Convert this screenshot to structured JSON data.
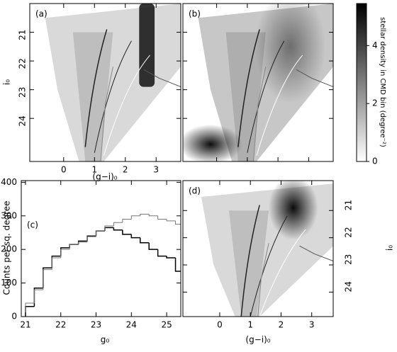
{
  "chart_data": [
    {
      "type": "density",
      "panel_label": "(a)",
      "xlabel": "(g−i)₀",
      "ylabel": "i₀",
      "xlim": [
        -1.1,
        3.8
      ],
      "ylim": [
        25.5,
        20.0
      ],
      "xticks": [
        0,
        1,
        2,
        3
      ],
      "yticks": [
        21,
        22,
        23,
        24
      ]
    },
    {
      "type": "density",
      "panel_label": "(b)",
      "xlim": [
        -1.1,
        3.8
      ],
      "ylim": [
        25.5,
        20.0
      ],
      "xticks": [
        0,
        1,
        2,
        3
      ],
      "yticks": [
        21,
        22,
        23,
        24
      ],
      "tick_labels": false
    },
    {
      "type": "histogram",
      "panel_label": "(c)",
      "xlabel": "g₀",
      "ylabel": "Counts per sq. degree",
      "bins": [
        21.0,
        21.25,
        21.5,
        21.75,
        22.0,
        22.25,
        22.5,
        22.75,
        23.0,
        23.25,
        23.5,
        23.75,
        24.0,
        24.25,
        24.5,
        24.75,
        25.0,
        25.25,
        25.5
      ],
      "series": [
        {
          "color": "#000000",
          "values": [
            30,
            85,
            145,
            180,
            205,
            215,
            225,
            240,
            255,
            265,
            258,
            245,
            235,
            220,
            200,
            180,
            175,
            135
          ]
        },
        {
          "color": "#777777",
          "values": [
            40,
            80,
            140,
            175,
            200,
            215,
            222,
            238,
            255,
            270,
            280,
            290,
            300,
            305,
            300,
            290,
            285,
            275
          ]
        }
      ],
      "xlim": [
        20.88,
        25.4
      ],
      "ylim": [
        0,
        405
      ],
      "xticks": [
        21,
        22,
        23,
        24,
        25
      ],
      "yticks": [
        0,
        100,
        200,
        300,
        400
      ]
    },
    {
      "type": "density",
      "panel_label": "(d)",
      "xlabel": "(g−i)₀",
      "ylabel": "i₀",
      "ylabel_side": "right",
      "xlim": [
        -1.2,
        3.7
      ],
      "ylim": [
        24.9,
        19.9
      ],
      "xticks": [
        0,
        1,
        2,
        3
      ],
      "yticks": [
        21,
        22,
        23,
        24
      ]
    },
    {
      "type": "colorbar",
      "label": "stellar density in CMD bin (degree⁻²)",
      "ylim": [
        0,
        5.45
      ],
      "yticks": [
        0,
        2,
        4
      ],
      "colors": [
        "#ffffff",
        "#000000"
      ]
    }
  ]
}
